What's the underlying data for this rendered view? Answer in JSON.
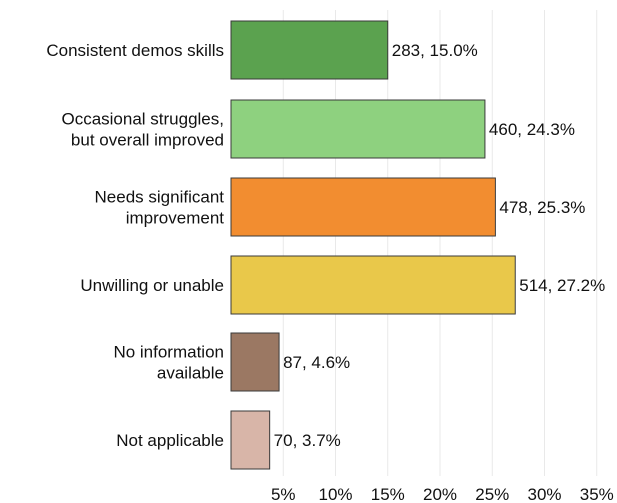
{
  "chart_data": {
    "type": "bar",
    "orientation": "horizontal",
    "categories": [
      [
        "Consistent demos skills"
      ],
      [
        "Occasional struggles,",
        "but overall improved"
      ],
      [
        "Needs significant",
        "improvement"
      ],
      [
        "Unwilling or unable"
      ],
      [
        "No information",
        "available"
      ],
      [
        "Not applicable"
      ]
    ],
    "counts": [
      283,
      460,
      478,
      514,
      87,
      70
    ],
    "values": [
      15.0,
      24.3,
      25.3,
      27.2,
      4.6,
      3.7
    ],
    "data_labels": [
      "283, 15.0%",
      "460, 24.3%",
      "478, 25.3%",
      "514, 27.2%",
      "87, 4.6%",
      "70, 3.7%"
    ],
    "colors": [
      "#5ba24f",
      "#8ed17f",
      "#f28d30",
      "#e9c84a",
      "#9b7863",
      "#d8b5a8"
    ],
    "xticks": [
      "5%",
      "10%",
      "15%",
      "20%",
      "25%",
      "30%",
      "35%"
    ],
    "xtick_values": [
      5,
      10,
      15,
      20,
      25,
      30,
      35
    ],
    "xlim": [
      0,
      36
    ],
    "grid": true,
    "title": "",
    "xlabel": "",
    "ylabel": ""
  }
}
